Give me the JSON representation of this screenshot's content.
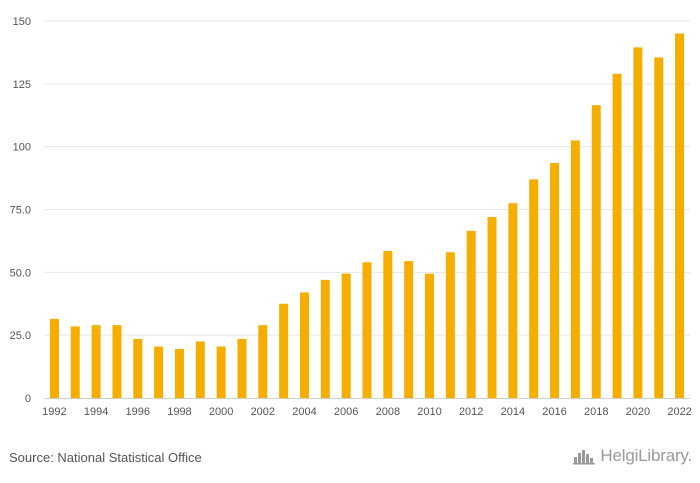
{
  "chart_data": {
    "type": "bar",
    "categories": [
      "1992",
      "1993",
      "1994",
      "1995",
      "1996",
      "1997",
      "1998",
      "1999",
      "2000",
      "2001",
      "2002",
      "2003",
      "2004",
      "2005",
      "2006",
      "2007",
      "2008",
      "2009",
      "2010",
      "2011",
      "2012",
      "2013",
      "2014",
      "2015",
      "2016",
      "2017",
      "2018",
      "2019",
      "2020",
      "2021",
      "2022"
    ],
    "values": [
      31.5,
      28.5,
      29.0,
      29.0,
      23.5,
      20.5,
      19.5,
      22.5,
      20.5,
      23.5,
      29.0,
      37.5,
      42.0,
      47.0,
      49.5,
      54.0,
      58.5,
      54.5,
      49.5,
      58.0,
      66.5,
      72.0,
      77.5,
      87.0,
      93.5,
      102.5,
      116.5,
      129.0,
      139.5,
      135.5,
      145.0
    ],
    "x_tick_labels": [
      "1992",
      "1994",
      "1996",
      "1998",
      "2000",
      "2002",
      "2004",
      "2006",
      "2008",
      "2010",
      "2012",
      "2014",
      "2016",
      "2018",
      "2020",
      "2022"
    ],
    "y_ticks": [
      0,
      25,
      50,
      75,
      100,
      125,
      150
    ],
    "y_tick_labels": [
      "0",
      "25.0",
      "50.0",
      "75.0",
      "100",
      "125",
      "150"
    ],
    "ylim": [
      0,
      150
    ],
    "title": "",
    "xlabel": "",
    "ylabel": "",
    "grid": true,
    "bar_color": "#f5ae00",
    "grid_color": "#e6e6e6"
  },
  "footer": {
    "source": "Source: National Statistical Office",
    "logo_text": "HelgiLibrary.",
    "logo_icon": "city-skyline-icon"
  }
}
